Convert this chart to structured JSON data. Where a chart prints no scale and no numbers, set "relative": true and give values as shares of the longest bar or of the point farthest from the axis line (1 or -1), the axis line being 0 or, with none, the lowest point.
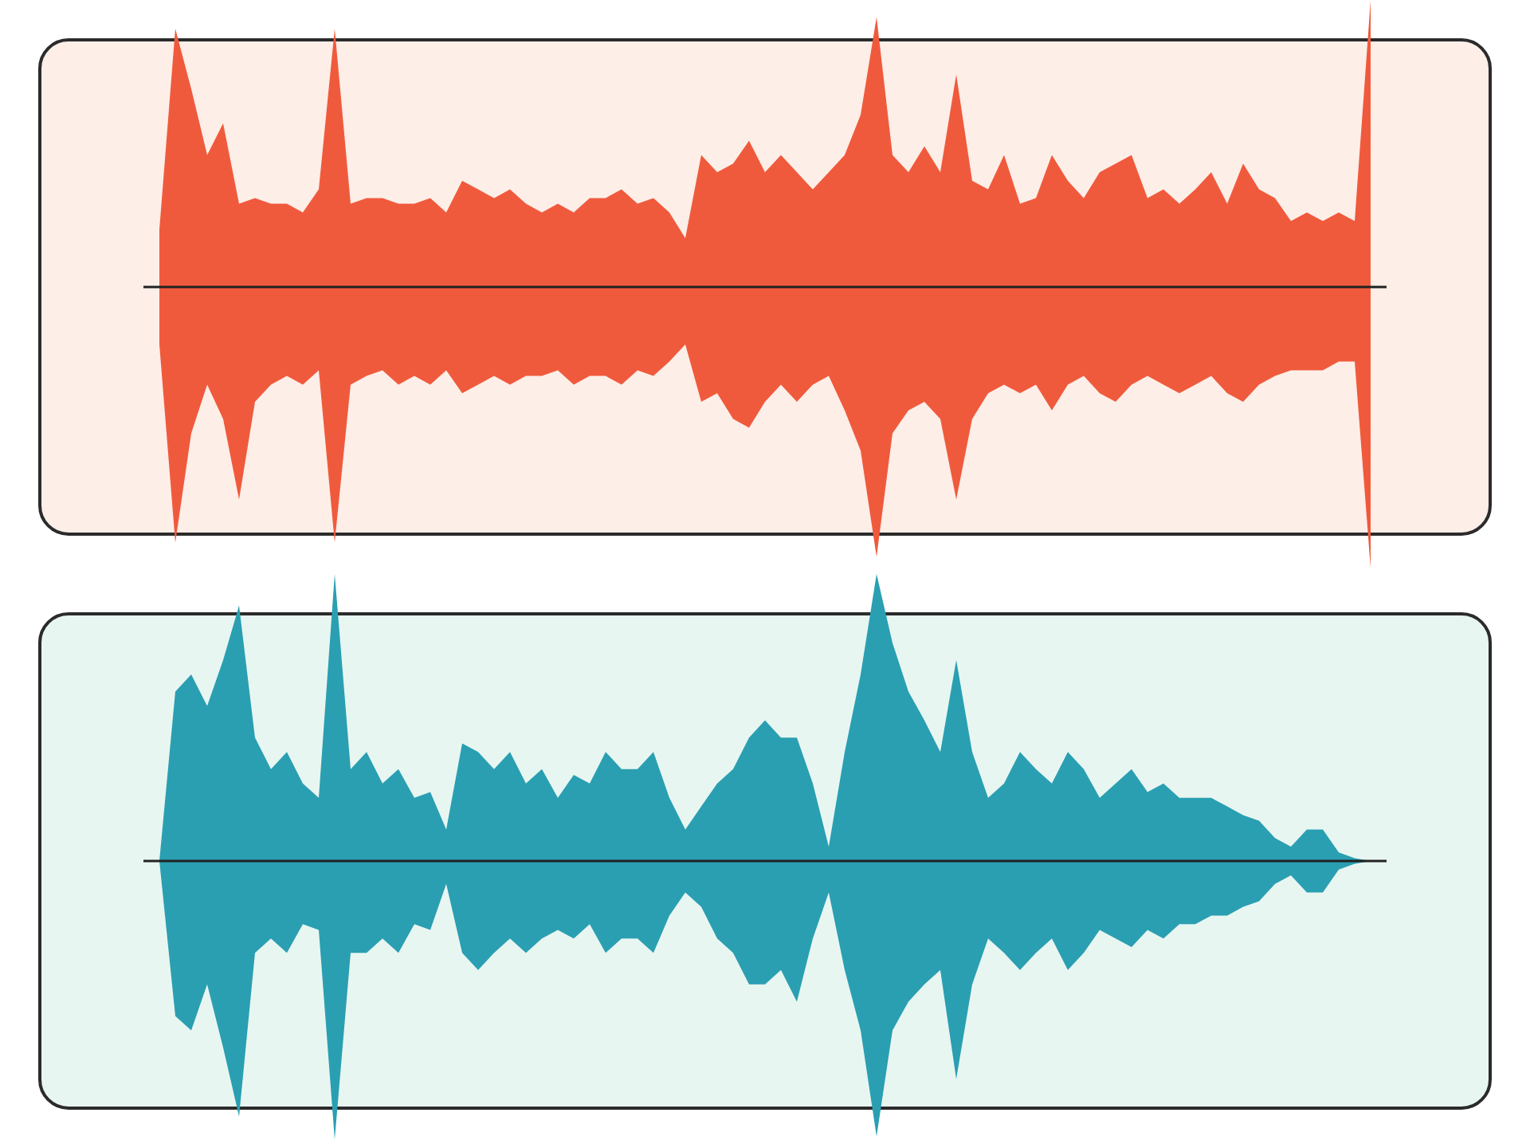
{
  "chart_data": [
    {
      "type": "area",
      "relative": true,
      "categories": [
        null,
        null,
        null,
        null,
        null,
        null,
        null,
        null,
        null,
        null,
        null,
        null,
        null,
        null,
        null,
        null,
        null,
        null,
        null,
        null,
        null,
        null,
        null,
        null,
        null,
        null,
        null,
        null,
        null,
        null,
        null,
        null,
        null,
        null,
        null,
        null,
        null,
        null,
        null,
        null,
        null,
        null,
        null,
        null,
        null,
        null,
        null,
        null,
        null,
        null,
        null,
        null,
        null,
        null,
        null,
        null,
        null,
        null,
        null,
        null,
        null,
        null,
        null,
        null,
        null,
        null,
        null,
        null,
        null,
        null,
        null,
        null,
        null,
        null,
        null,
        null,
        null
      ],
      "series": [
        {
          "color": "#f05a3c",
          "values": [
            0.2,
            0.9,
            0.69,
            0.46,
            0.57,
            0.29,
            0.31,
            0.29,
            0.29,
            0.26,
            0.34,
            0.9,
            0.29,
            0.31,
            0.31,
            0.29,
            0.29,
            0.31,
            0.26,
            0.37,
            0.34,
            0.31,
            0.34,
            0.29,
            0.26,
            0.29,
            0.26,
            0.31,
            0.31,
            0.34,
            0.29,
            0.31,
            0.26,
            0.17,
            0.46,
            0.4,
            0.43,
            0.51,
            0.4,
            0.46,
            0.4,
            0.34,
            0.4,
            0.46,
            0.6,
            0.94,
            0.46,
            0.4,
            0.49,
            0.4,
            0.74,
            0.37,
            0.34,
            0.46,
            0.29,
            0.31,
            0.46,
            0.37,
            0.31,
            0.4,
            0.43,
            0.46,
            0.31,
            0.34,
            0.29,
            0.34,
            0.4,
            0.29,
            0.43,
            0.34,
            0.31,
            0.23,
            0.26,
            0.23,
            0.26,
            0.23,
            1
          ]
        },
        {
          "color": "#f05a3c",
          "values": [
            -0.2,
            -0.89,
            -0.51,
            -0.34,
            -0.46,
            -0.74,
            -0.4,
            -0.34,
            -0.31,
            -0.34,
            -0.29,
            -0.89,
            -0.34,
            -0.31,
            -0.29,
            -0.34,
            -0.31,
            -0.34,
            -0.29,
            -0.37,
            -0.34,
            -0.31,
            -0.34,
            -0.31,
            -0.31,
            -0.29,
            -0.34,
            -0.31,
            -0.31,
            -0.34,
            -0.29,
            -0.31,
            -0.26,
            -0.2,
            -0.4,
            -0.37,
            -0.46,
            -0.49,
            -0.4,
            -0.34,
            -0.4,
            -0.34,
            -0.31,
            -0.43,
            -0.57,
            -0.94,
            -0.51,
            -0.43,
            -0.4,
            -0.46,
            -0.74,
            -0.46,
            -0.37,
            -0.34,
            -0.37,
            -0.34,
            -0.43,
            -0.34,
            -0.31,
            -0.37,
            -0.4,
            -0.34,
            -0.31,
            -0.34,
            -0.37,
            -0.34,
            -0.31,
            -0.37,
            -0.4,
            -0.34,
            -0.31,
            -0.29,
            -0.29,
            -0.29,
            -0.26,
            -0.26,
            -0.98
          ]
        }
      ]
    },
    {
      "type": "area",
      "relative": true,
      "categories": [
        null,
        null,
        null,
        null,
        null,
        null,
        null,
        null,
        null,
        null,
        null,
        null,
        null,
        null,
        null,
        null,
        null,
        null,
        null,
        null,
        null,
        null,
        null,
        null,
        null,
        null,
        null,
        null,
        null,
        null,
        null,
        null,
        null,
        null,
        null,
        null,
        null,
        null,
        null,
        null,
        null,
        null,
        null,
        null,
        null,
        null,
        null,
        null,
        null,
        null,
        null,
        null,
        null,
        null,
        null,
        null,
        null,
        null,
        null,
        null,
        null,
        null,
        null,
        null,
        null,
        null,
        null,
        null,
        null,
        null,
        null,
        null,
        null,
        null,
        null,
        null,
        null
      ],
      "series": [
        {
          "color": "#2a9fb2",
          "values": [
            0,
            0.59,
            0.65,
            0.54,
            0.7,
            0.89,
            0.43,
            0.32,
            0.38,
            0.27,
            0.22,
            1,
            0.32,
            0.38,
            0.27,
            0.32,
            0.22,
            0.24,
            0.11,
            0.41,
            0.38,
            0.32,
            0.38,
            0.27,
            0.32,
            0.22,
            0.3,
            0.27,
            0.38,
            0.32,
            0.32,
            0.38,
            0.22,
            0.11,
            0.19,
            0.27,
            0.32,
            0.43,
            0.49,
            0.43,
            0.43,
            0.27,
            0.05,
            0.38,
            0.65,
            1,
            0.76,
            0.59,
            0.49,
            0.38,
            0.7,
            0.38,
            0.22,
            0.27,
            0.38,
            0.32,
            0.27,
            0.38,
            0.32,
            0.22,
            0.27,
            0.32,
            0.24,
            0.27,
            0.22,
            0.22,
            0.22,
            0.19,
            0.16,
            0.14,
            0.08,
            0.05,
            0.11,
            0.11,
            0.03,
            0.01,
            0
          ]
        },
        {
          "color": "#2a9fb2",
          "values": [
            0,
            -0.54,
            -0.59,
            -0.43,
            -0.65,
            -0.89,
            -0.32,
            -0.27,
            -0.32,
            -0.22,
            -0.24,
            -0.97,
            -0.32,
            -0.32,
            -0.27,
            -0.32,
            -0.22,
            -0.24,
            -0.08,
            -0.32,
            -0.38,
            -0.32,
            -0.27,
            -0.32,
            -0.27,
            -0.24,
            -0.27,
            -0.22,
            -0.32,
            -0.27,
            -0.27,
            -0.32,
            -0.19,
            -0.11,
            -0.16,
            -0.27,
            -0.32,
            -0.43,
            -0.43,
            -0.38,
            -0.49,
            -0.27,
            -0.11,
            -0.38,
            -0.59,
            -0.96,
            -0.59,
            -0.49,
            -0.43,
            -0.38,
            -0.76,
            -0.43,
            -0.27,
            -0.32,
            -0.38,
            -0.32,
            -0.27,
            -0.38,
            -0.32,
            -0.24,
            -0.27,
            -0.3,
            -0.24,
            -0.27,
            -0.22,
            -0.22,
            -0.19,
            -0.19,
            -0.16,
            -0.14,
            -0.08,
            -0.05,
            -0.11,
            -0.11,
            -0.03,
            -0.01,
            0
          ]
        }
      ]
    }
  ]
}
